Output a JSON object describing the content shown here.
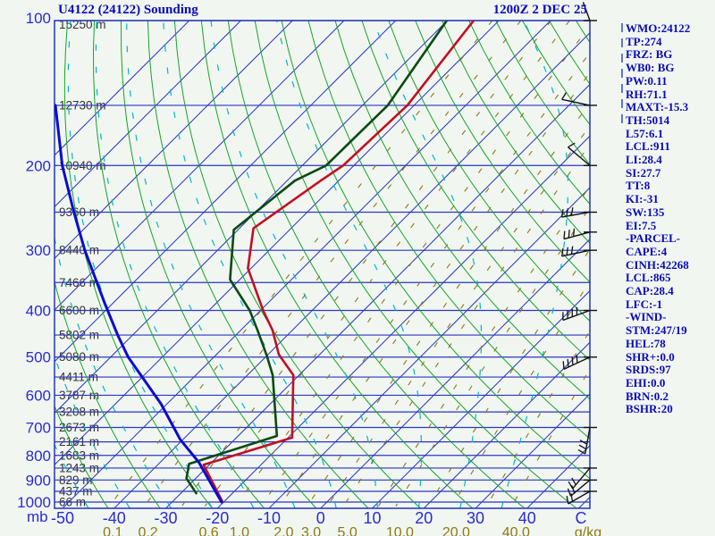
{
  "header": {
    "title": "U4122 (24122) Sounding",
    "datetime": "1200Z  2 DEC 25"
  },
  "panel": {
    "lines": [
      "WMO:24122",
      "TP:274",
      "FRZ: BG",
      "WB0: BG",
      "PW:0.11",
      "RH:71.1",
      "MAXT:-15.3",
      "TH:5014",
      "L57:6.1",
      "LCL:911",
      "LI:28.4",
      "SI:27.7",
      "TT:8",
      "KI:-31",
      "SW:135",
      "EI:7.5",
      "-PARCEL-",
      "CAPE:4",
      "CINH:42268",
      "LCL:865",
      "CAP:28.4",
      "LFC:-1",
      "-WIND-",
      "STM:247/19",
      "HEL:78",
      "SHR+:0.0",
      "SRDS:97",
      "EHI:0.0",
      "BRN:0.2",
      "BSHR:20"
    ]
  },
  "chart_data": {
    "type": "line",
    "subtype": "skewt-logp-sounding",
    "title": "U4122 (24122) Sounding",
    "pressure_axis": {
      "unit": "mb",
      "ticks": [
        100,
        200,
        300,
        400,
        500,
        600,
        700,
        800,
        900,
        1000
      ],
      "isobar_step_mb": 50,
      "range": [
        100,
        1030
      ]
    },
    "temp_axis": {
      "unit": "C",
      "ticks": [
        -50,
        -40,
        -30,
        -20,
        -10,
        0,
        10,
        20,
        30,
        40
      ],
      "skew_deg": 45
    },
    "mixing_axis": {
      "unit": "g/kg",
      "ticks": [
        "0.1",
        "0.2",
        "0.6",
        "1.0",
        "2.0",
        "3.0",
        "5.0",
        "10.0",
        "20.0",
        "40.0"
      ],
      "tick_values": [
        0.1,
        0.2,
        0.6,
        1.0,
        2.0,
        3.0,
        5.0,
        10.0,
        20.0,
        40.0
      ],
      "drawn_lines": [
        0.1,
        0.2,
        0.4,
        0.6,
        1.0,
        1.5,
        2.0,
        3.0,
        4.0,
        5.0,
        8.0,
        10.0,
        15.0,
        20.0,
        30.0,
        40.0
      ]
    },
    "heights": [
      [
        100,
        "15250 m"
      ],
      [
        150,
        "12730 m"
      ],
      [
        200,
        "10940 m"
      ],
      [
        250,
        "9360 m"
      ],
      [
        300,
        "8440 m"
      ],
      [
        350,
        "7466 m"
      ],
      [
        400,
        "6600 m"
      ],
      [
        450,
        "5802 m"
      ],
      [
        500,
        "5080 m"
      ],
      [
        550,
        "4411 m"
      ],
      [
        600,
        "3787 m"
      ],
      [
        650,
        "3208 m"
      ],
      [
        700,
        "2673 m"
      ],
      [
        750,
        "2161 m"
      ],
      [
        800,
        "1683 m"
      ],
      [
        850,
        "1243 m"
      ],
      [
        900,
        "829 m"
      ],
      [
        950,
        "437 m"
      ],
      [
        1000,
        "66 m"
      ]
    ],
    "series": [
      {
        "name": "temperature",
        "color": "#c11022",
        "width": 2.6,
        "points": [
          [
            100,
            -64.9
          ],
          [
            150,
            -61.3
          ],
          [
            200,
            -62.1
          ],
          [
            215,
            -63.5
          ],
          [
            270,
            -67.3
          ],
          [
            327,
            -60.6
          ],
          [
            400,
            -49.5
          ],
          [
            440,
            -43.8
          ],
          [
            494,
            -37.9
          ],
          [
            545,
            -31.1
          ],
          [
            735,
            -19.2
          ],
          [
            837,
            -31.1
          ],
          [
            1000,
            -20.2
          ]
        ]
      },
      {
        "name": "dewpoint",
        "color": "#0c4a12",
        "width": 2.6,
        "points": [
          [
            100,
            -70.1
          ],
          [
            150,
            -65.1
          ],
          [
            200,
            -65.4
          ],
          [
            215,
            -68.5
          ],
          [
            272,
            -70.8
          ],
          [
            345,
            -61.9
          ],
          [
            400,
            -52.1
          ],
          [
            440,
            -46.7
          ],
          [
            494,
            -40.3
          ],
          [
            545,
            -35.1
          ],
          [
            729,
            -22.5
          ],
          [
            833,
            -34.1
          ],
          [
            893,
            -31.8
          ],
          [
            959,
            -27.0
          ]
        ]
      },
      {
        "name": "parcel",
        "color": "#0b0bd0",
        "width": 3,
        "points": [
          [
            150,
            -129.5
          ],
          [
            200,
            -116.5
          ],
          [
            250,
            -105.2
          ],
          [
            300,
            -95.7
          ],
          [
            387,
            -81.5
          ],
          [
            450,
            -72.9
          ],
          [
            500,
            -66.6
          ],
          [
            625,
            -51.2
          ],
          [
            742,
            -40.5
          ],
          [
            827,
            -32.5
          ],
          [
            1000,
            -20.4
          ]
        ]
      }
    ],
    "winds": [
      {
        "p": 100,
        "dir": 340,
        "ticks": 0,
        "len": 22
      },
      {
        "p": 150,
        "dir": 282,
        "ticks": 1,
        "len": 32
      },
      {
        "p": 200,
        "dir": 310,
        "ticks": 1,
        "len": 32
      },
      {
        "p": 250,
        "dir": 260,
        "ticks": 3,
        "len": 32
      },
      {
        "p": 275,
        "dir": 255,
        "ticks": 3,
        "len": 30
      },
      {
        "p": 300,
        "dir": 258,
        "ticks": 3,
        "len": 32
      },
      {
        "p": 400,
        "dir": 250,
        "ticks": 4,
        "len": 32
      },
      {
        "p": 500,
        "dir": 245,
        "ticks": 4,
        "len": 32
      },
      {
        "p": 700,
        "dir": 190,
        "ticks": 3,
        "len": 30
      },
      {
        "p": 850,
        "dir": 220,
        "ticks": 2,
        "len": 30
      },
      {
        "p": 900,
        "dir": 230,
        "ticks": 2,
        "len": 28
      },
      {
        "p": 950,
        "dir": 240,
        "ticks": 2,
        "len": 28
      }
    ],
    "colors": {
      "background": "#f1f6f1",
      "border": "#2233bb",
      "isobar": "#2936c4",
      "isotherm": "#2936c4",
      "dry_adiabat": "#16a428",
      "moist_adiabat": "#00b6cc",
      "mixing_ratio": "#8a7a10",
      "temperature": "#c11022",
      "dewpoint": "#0c4a12",
      "parcel": "#0b0bd0",
      "wind_barb": "#111111",
      "axis_label_blue": "#2b2bcf",
      "axis_label_olive": "#8a7a10",
      "height_label": "#333333",
      "panel_text": "#0b0bb5"
    }
  }
}
